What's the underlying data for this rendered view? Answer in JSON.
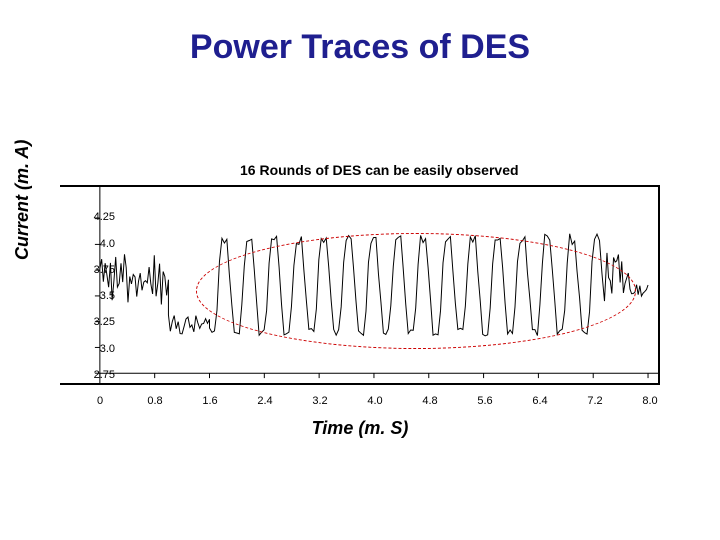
{
  "title": "Power Traces of DES",
  "caption": "16 Rounds of DES can be easily observed",
  "chart": {
    "type": "line",
    "xlabel": "Time (m. S)",
    "ylabel": "Current (m. A)",
    "xlim": [
      0,
      8.0
    ],
    "ylim": [
      2.75,
      4.5
    ],
    "x_ticks": [
      0,
      0.8,
      1.6,
      2.4,
      3.2,
      4.0,
      4.8,
      5.6,
      6.4,
      7.2,
      8.0
    ],
    "x_tick_labels": [
      "0",
      "0.8",
      "1.6",
      "2.4",
      "3.2",
      "4.0",
      "4.8",
      "5.6",
      "6.4",
      "7.2",
      "8.0"
    ],
    "y_ticks": [
      2.75,
      3.0,
      3.25,
      3.5,
      3.75,
      4.0,
      4.25
    ],
    "y_tick_labels": [
      "2.75",
      "3.0",
      "3.25",
      "3.5",
      "3.75",
      "4.0",
      "4.25"
    ],
    "line_color": "#000000",
    "line_width": 1,
    "background_color": "#ffffff",
    "ellipse": {
      "cx_time": 4.6,
      "cy_current": 3.55,
      "rx_time": 3.2,
      "ry_current": 0.55,
      "color": "#cc0000",
      "dash": "4 3"
    },
    "intro_segment": {
      "x_range": [
        0,
        1.0
      ],
      "base": 3.65,
      "jitter": 0.15
    },
    "dip_segment": {
      "x_range": [
        1.0,
        1.6
      ],
      "base": 3.22,
      "jitter": 0.1
    },
    "rounds": {
      "count": 16,
      "x_start": 1.6,
      "x_end": 7.4,
      "low": 3.15,
      "high": 4.05,
      "jitter": 0.08
    },
    "tail_segment": {
      "x_range": [
        7.4,
        8.0
      ],
      "base": 3.72,
      "jitter": 0.2
    }
  }
}
